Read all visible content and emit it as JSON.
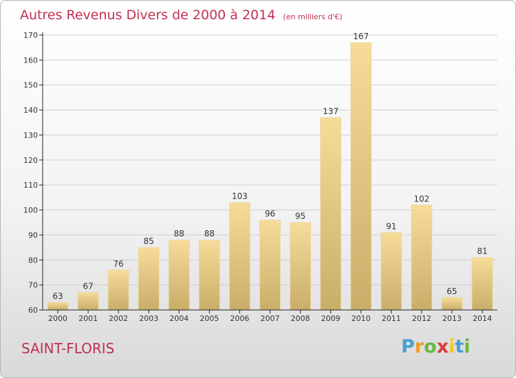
{
  "colors": {
    "title": "#c0304f",
    "bar_light": "#f7dc99",
    "bar_dark": "#c9ae6a",
    "axis": "#222222",
    "grid": "#cfcfcf"
  },
  "chart_data": {
    "type": "bar",
    "title": "Autres Revenus Divers de 2000 à 2014",
    "subtitle": "(en milliers d'€)",
    "xlabel": "",
    "ylabel": "",
    "categories": [
      "2000",
      "2001",
      "2002",
      "2003",
      "2004",
      "2005",
      "2006",
      "2007",
      "2008",
      "2009",
      "2010",
      "2011",
      "2012",
      "2013",
      "2014"
    ],
    "values": [
      63,
      67,
      76,
      85,
      88,
      88,
      103,
      96,
      95,
      137,
      167,
      91,
      102,
      65,
      81
    ],
    "ylim": [
      60,
      170
    ],
    "yticks": [
      60,
      70,
      80,
      90,
      100,
      110,
      120,
      130,
      140,
      150,
      160,
      170
    ],
    "grid": true,
    "data_labels": true
  },
  "footer": {
    "town": "SAINT-FLORIS",
    "logo_letters": [
      "P",
      "r",
      "o",
      "x",
      "i",
      "t",
      "i"
    ],
    "logo_colors": [
      "#4a9fd6",
      "#f29a1f",
      "#68b843",
      "#d93a3a",
      "#f2c81f",
      "#4a9fd6",
      "#68b843"
    ]
  }
}
